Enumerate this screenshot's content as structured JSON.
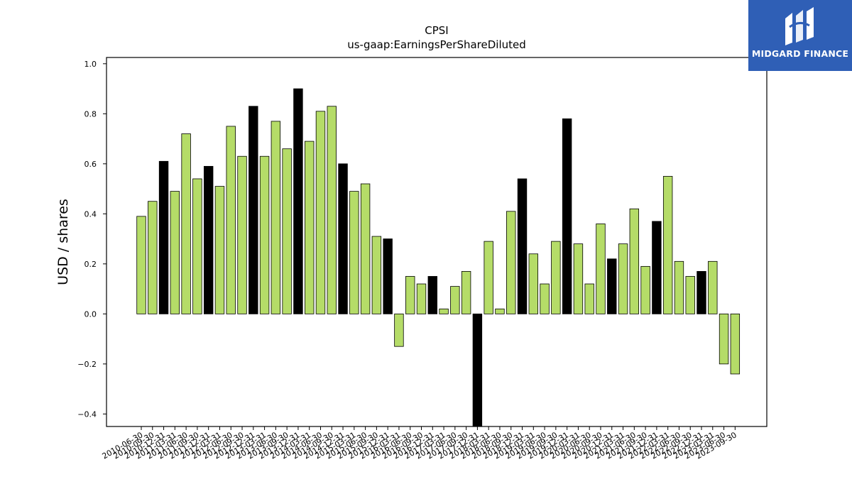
{
  "brand": {
    "name": "MIDGARD FINANCE",
    "background": "#2f5fb6"
  },
  "chart_data": {
    "type": "bar",
    "title": "CPSI",
    "subtitle": "us-gaap:EarningsPerShareDiluted",
    "ylabel": "USD / shares",
    "xlabel": "",
    "ylim": [
      -0.45,
      1.025
    ],
    "yticks": [
      -0.4,
      -0.2,
      0.0,
      0.2,
      0.4,
      0.6,
      0.8,
      1.0
    ],
    "ytick_labels": [
      "−0.4",
      "−0.2",
      "0.0",
      "0.2",
      "0.4",
      "0.6",
      "0.8",
      "1.0"
    ],
    "grid": false,
    "colors": {
      "quarter": "#b5dc68",
      "annual": "#000000",
      "edge": "#000000"
    },
    "categories": [
      "2010-06-30",
      "2010-09-30",
      "2010-12-31",
      "2011-03-31",
      "2011-06-30",
      "2011-09-30",
      "2011-12-31",
      "2012-03-31",
      "2012-06-30",
      "2012-09-30",
      "2012-12-31",
      "2013-03-31",
      "2013-06-30",
      "2013-09-30",
      "2013-12-31",
      "2014-03-31",
      "2014-06-30",
      "2014-09-30",
      "2014-12-31",
      "2015-03-31",
      "2015-06-30",
      "2015-09-30",
      "2015-12-31",
      "2016-03-31",
      "2016-06-30",
      "2016-09-30",
      "2016-12-31",
      "2017-03-31",
      "2017-06-30",
      "2017-09-30",
      "2017-12-31",
      "2018-03-31",
      "2018-06-30",
      "2018-09-30",
      "2018-12-31",
      "2019-03-31",
      "2019-06-30",
      "2019-09-30",
      "2019-12-31",
      "2020-03-31",
      "2020-06-30",
      "2020-09-30",
      "2020-12-31",
      "2021-03-31",
      "2021-06-30",
      "2021-09-30",
      "2021-12-31",
      "2022-03-31",
      "2022-06-30",
      "2022-09-30",
      "2022-12-31",
      "2023-03-31",
      "2023-06-30",
      "2023-09-30"
    ],
    "values": [
      0.39,
      0.45,
      0.61,
      0.49,
      0.72,
      0.54,
      0.59,
      0.51,
      0.75,
      0.63,
      0.83,
      0.63,
      0.77,
      0.66,
      0.9,
      0.69,
      0.81,
      0.83,
      0.6,
      0.49,
      0.52,
      0.31,
      0.3,
      -0.13,
      0.15,
      0.12,
      0.15,
      0.02,
      0.11,
      0.17,
      -0.46,
      0.29,
      0.02,
      0.41,
      0.54,
      0.24,
      0.12,
      0.29,
      0.78,
      0.28,
      0.12,
      0.36,
      0.22,
      0.28,
      0.42,
      0.19,
      0.37,
      0.55,
      0.21,
      0.15,
      0.17,
      0.21,
      -0.2,
      -0.24
    ],
    "annual_flags": [
      0,
      0,
      1,
      0,
      0,
      0,
      1,
      0,
      0,
      0,
      1,
      0,
      0,
      0,
      1,
      0,
      0,
      0,
      1,
      0,
      0,
      0,
      1,
      0,
      0,
      0,
      1,
      0,
      0,
      0,
      1,
      0,
      0,
      0,
      1,
      0,
      0,
      0,
      1,
      0,
      0,
      0,
      1,
      0,
      0,
      0,
      1,
      0,
      0,
      0,
      1,
      0,
      0,
      0
    ]
  }
}
